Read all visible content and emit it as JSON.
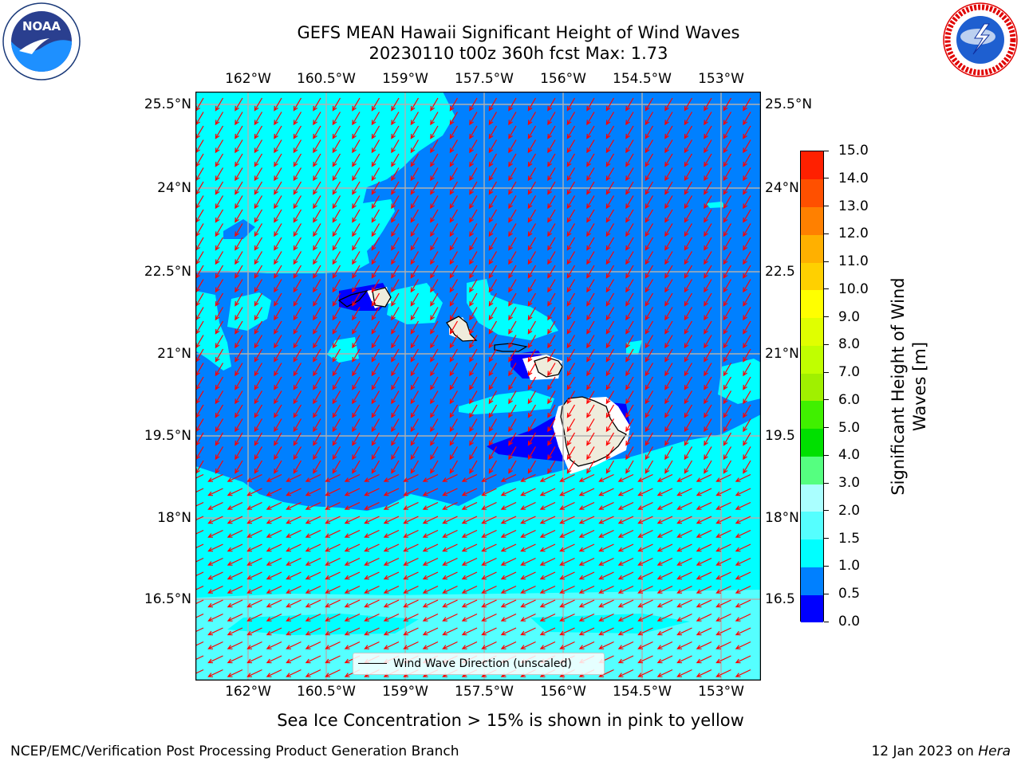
{
  "title": {
    "line1": "GEFS MEAN Hawaii Significant Height of Wind Waves",
    "line2": "20230110 t00z 360h fcst   Max: 1.73"
  },
  "logos": {
    "left": "noaa-logo",
    "left_text": "NATIONAL OCEANIC AND ATMOSPHERIC ADMINISTRATION U.S. DEPARTMENT OF COMMERCE",
    "left_wordmark": "NOAA",
    "right": "national-weather-service-logo",
    "right_text": "NATIONAL WEATHER SERVICE"
  },
  "map": {
    "lon_labels": [
      "162°W",
      "160.5°W",
      "159°W",
      "157.5°W",
      "156°W",
      "154.5°W",
      "153°W"
    ],
    "lat_labels": [
      "25.5°N",
      "24°N",
      "22.5°N",
      "21°N",
      "19.5°N",
      "18°N",
      "16.5°N"
    ],
    "right_lat_labels": [
      "25.5°N",
      "24°N",
      "22.5",
      "21°N",
      "19.5",
      "18°N",
      "16.5"
    ],
    "colors": {
      "ocean_1_0_1_5": "#00ffff",
      "ocean_0_5_1_0": "#0080ff",
      "ocean_0_0_0_5": "#0000ff",
      "ocean_1_5_2_0": "#55ffff",
      "land": "#efecdc",
      "arrow": "#ff0000",
      "grid": "#b0b0b0"
    },
    "legend_label": "Wind Wave Direction (unscaled)"
  },
  "colorbar": {
    "title": "Significant Height of Wind Waves [m]",
    "title_line1": "Significant Height of Wind",
    "title_line2": "Waves [m]",
    "labels": [
      "0.0",
      "0.5",
      "1.0",
      "1.5",
      "2.0",
      "3.0",
      "4.0",
      "5.0",
      "6.0",
      "7.0",
      "8.0",
      "9.0",
      "10.0",
      "11.0",
      "12.0",
      "13.0",
      "14.0",
      "15.0"
    ],
    "colors": [
      "#0000ff",
      "#0080ff",
      "#00ffff",
      "#55ffff",
      "#aaffff",
      "#55ff80",
      "#00e000",
      "#40f000",
      "#a0f000",
      "#c0ff00",
      "#e0ff00",
      "#ffff00",
      "#ffd000",
      "#ffb000",
      "#ff8000",
      "#ff5000",
      "#ff2000"
    ]
  },
  "footer": {
    "sea_ice_note": "Sea Ice Concentration > 15% is shown in pink to yellow",
    "left": "NCEP/EMC/Verification Post Processing Product Generation Branch",
    "right_date": "12 Jan 2023 on",
    "right_machine": "Hera"
  }
}
